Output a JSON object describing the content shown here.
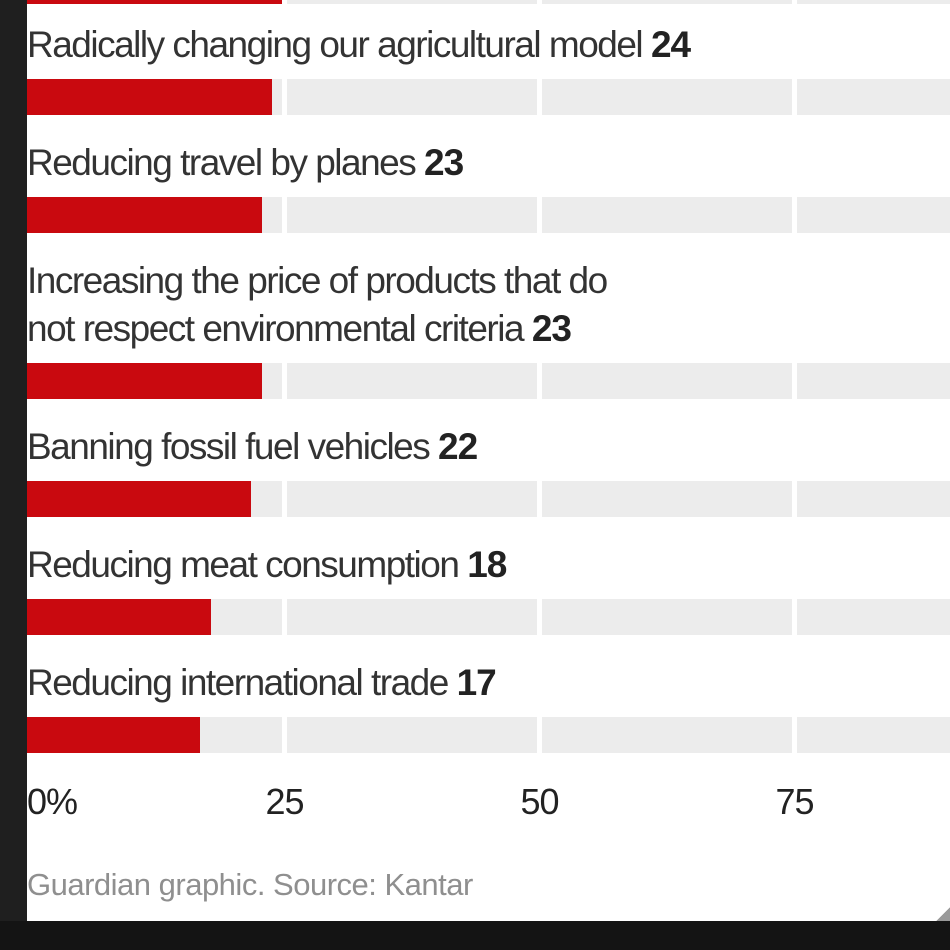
{
  "chart_data": {
    "type": "bar",
    "orientation": "horizontal",
    "categories": [
      "Radically changing our agricultural model",
      "Reducing travel by planes",
      "Increasing the price of products that do not respect environmental criteria",
      "Banning fossil fuel vehicles",
      "Reducing meat consumption",
      "Reducing international trade"
    ],
    "values": [
      24,
      23,
      23,
      22,
      18,
      17
    ],
    "unit": "%",
    "x_ticks": [
      "0%",
      "25",
      "50",
      "75"
    ],
    "x_tick_values": [
      0,
      25,
      50,
      75
    ],
    "xlim": [
      0,
      90
    ],
    "grid": true,
    "partial_bar_above": {
      "value": 25,
      "note": "bottom sliver of a cropped bar visible at top edge"
    },
    "bar_color": "#c9090f",
    "track_color": "#ececec",
    "source": "Guardian graphic. Source: Kantar"
  },
  "rows": [
    {
      "lines": [
        "Radically changing our agricultural model"
      ],
      "value": 24
    },
    {
      "lines": [
        "Reducing travel by planes"
      ],
      "value": 23
    },
    {
      "lines": [
        "Increasing the price of products that do",
        "not respect environmental criteria"
      ],
      "value": 23
    },
    {
      "lines": [
        "Banning fossil fuel vehicles"
      ],
      "value": 22
    },
    {
      "lines": [
        "Reducing meat consumption"
      ],
      "value": 18
    },
    {
      "lines": [
        "Reducing international trade"
      ],
      "value": 17
    }
  ],
  "axis": {
    "ticks": [
      {
        "label": "0%",
        "value": 0
      },
      {
        "label": "25",
        "value": 25
      },
      {
        "label": "50",
        "value": 50
      },
      {
        "label": "75",
        "value": 75
      }
    ]
  },
  "footer": {
    "source_label": "Guardian graphic. Source: Kantar"
  }
}
